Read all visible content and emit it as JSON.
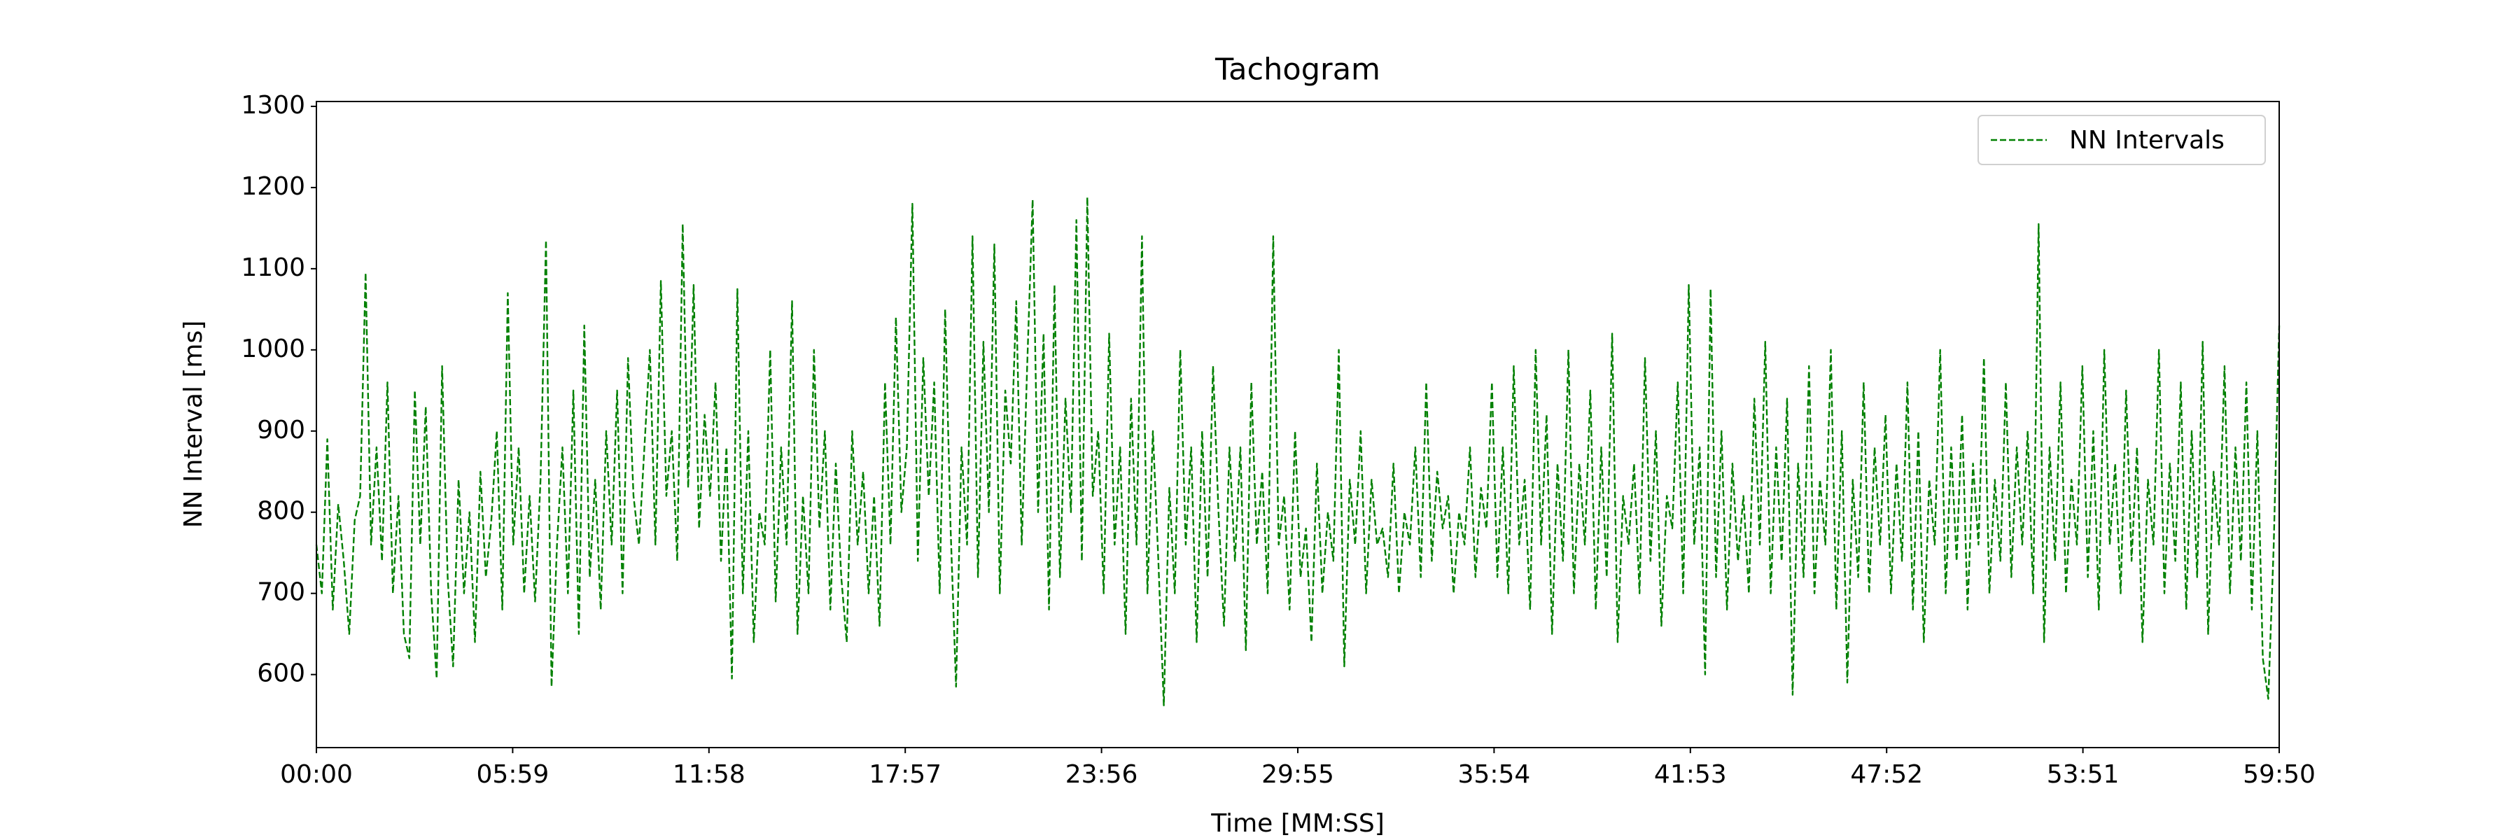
{
  "chart_data": {
    "type": "line",
    "title": "Tachogram",
    "xlabel": "Time [MM:SS]",
    "ylabel": "NN Interval [ms]",
    "x": [
      0,
      10,
      20,
      30,
      40,
      50,
      60,
      70,
      80,
      90,
      100,
      110,
      120,
      130,
      140,
      150,
      160,
      170,
      180,
      190,
      200,
      210,
      220,
      230,
      240,
      250,
      260,
      270,
      280,
      290,
      300,
      310,
      320,
      330,
      340,
      350,
      360,
      370,
      380,
      390,
      400,
      410,
      420,
      430,
      440,
      450,
      460,
      470,
      480,
      490,
      500,
      510,
      520,
      530,
      540,
      550,
      560,
      570,
      580,
      590,
      600,
      610,
      620,
      630,
      640,
      650,
      660,
      670,
      680,
      690,
      700,
      710,
      720,
      730,
      740,
      750,
      760,
      770,
      780,
      790,
      800,
      810,
      820,
      830,
      840,
      850,
      860,
      870,
      880,
      890,
      900,
      910,
      920,
      930,
      940,
      950,
      960,
      970,
      980,
      990,
      1000,
      1010,
      1020,
      1030,
      1040,
      1050,
      1060,
      1070,
      1080,
      1090,
      1100,
      1110,
      1120,
      1130,
      1140,
      1150,
      1160,
      1170,
      1180,
      1190,
      1200,
      1210,
      1220,
      1230,
      1240,
      1250,
      1260,
      1270,
      1280,
      1290,
      1300,
      1310,
      1320,
      1330,
      1340,
      1350,
      1360,
      1370,
      1380,
      1390,
      1400,
      1410,
      1420,
      1430,
      1440,
      1450,
      1460,
      1470,
      1480,
      1490,
      1500,
      1510,
      1520,
      1530,
      1540,
      1550,
      1560,
      1570,
      1580,
      1590,
      1600,
      1610,
      1620,
      1630,
      1640,
      1650,
      1660,
      1670,
      1680,
      1690,
      1700,
      1710,
      1720,
      1730,
      1740,
      1750,
      1760,
      1770,
      1780,
      1790,
      1800,
      1810,
      1820,
      1830,
      1840,
      1850,
      1860,
      1870,
      1880,
      1890,
      1900,
      1910,
      1920,
      1930,
      1940,
      1950,
      1960,
      1970,
      1980,
      1990,
      2000,
      2010,
      2020,
      2030,
      2040,
      2050,
      2060,
      2070,
      2080,
      2090,
      2100,
      2110,
      2120,
      2130,
      2140,
      2150,
      2160,
      2170,
      2180,
      2190,
      2200,
      2210,
      2220,
      2230,
      2240,
      2250,
      2260,
      2270,
      2280,
      2290,
      2300,
      2310,
      2320,
      2330,
      2340,
      2350,
      2360,
      2370,
      2380,
      2390,
      2400,
      2410,
      2420,
      2430,
      2440,
      2450,
      2460,
      2470,
      2480,
      2490,
      2500,
      2510,
      2520,
      2530,
      2540,
      2550,
      2560,
      2570,
      2580,
      2590,
      2600,
      2610,
      2620,
      2630,
      2640,
      2650,
      2660,
      2670,
      2680,
      2690,
      2700,
      2710,
      2720,
      2730,
      2740,
      2750,
      2760,
      2770,
      2780,
      2790,
      2800,
      2810,
      2820,
      2830,
      2840,
      2850,
      2860,
      2870,
      2880,
      2890,
      2900,
      2910,
      2920,
      2930,
      2940,
      2950,
      2960,
      2970,
      2980,
      2990,
      3000,
      3010,
      3020,
      3030,
      3040,
      3050,
      3060,
      3070,
      3080,
      3090,
      3100,
      3110,
      3120,
      3130,
      3140,
      3150,
      3160,
      3170,
      3180,
      3190,
      3200,
      3210,
      3220,
      3230,
      3240,
      3250,
      3260,
      3270,
      3280,
      3290,
      3300,
      3310,
      3320,
      3330,
      3340,
      3350,
      3360,
      3370,
      3380,
      3390,
      3400,
      3410,
      3420,
      3430,
      3440,
      3450,
      3460,
      3470,
      3480,
      3490,
      3500,
      3510,
      3520,
      3530,
      3540,
      3550,
      3560,
      3570,
      3580,
      3590
    ],
    "series": [
      {
        "name": "NN Intervals",
        "color": "#008000",
        "values": [
          760,
          700,
          890,
          680,
          810,
          740,
          650,
          790,
          820,
          1095,
          760,
          880,
          740,
          960,
          700,
          820,
          650,
          620,
          950,
          760,
          930,
          700,
          595,
          980,
          720,
          610,
          840,
          700,
          800,
          640,
          850,
          720,
          790,
          900,
          680,
          1070,
          760,
          880,
          700,
          820,
          690,
          840,
          1135,
          585,
          760,
          880,
          700,
          950,
          650,
          1030,
          720,
          840,
          680,
          900,
          760,
          950,
          700,
          990,
          820,
          760,
          880,
          1000,
          760,
          1085,
          820,
          900,
          740,
          1155,
          830,
          1080,
          780,
          920,
          820,
          960,
          740,
          880,
          595,
          1075,
          700,
          900,
          640,
          800,
          760,
          1000,
          690,
          880,
          760,
          1060,
          650,
          820,
          700,
          1000,
          780,
          900,
          680,
          860,
          720,
          640,
          900,
          760,
          850,
          700,
          820,
          660,
          960,
          760,
          1040,
          800,
          880,
          1180,
          740,
          990,
          820,
          960,
          700,
          1050,
          780,
          585,
          880,
          760,
          1140,
          720,
          1010,
          800,
          1130,
          700,
          950,
          860,
          1060,
          760,
          980,
          1185,
          800,
          1020,
          680,
          1080,
          720,
          940,
          800,
          1160,
          740,
          1188,
          820,
          900,
          700,
          1020,
          760,
          880,
          650,
          940,
          760,
          1140,
          700,
          900,
          740,
          562,
          830,
          700,
          1000,
          760,
          880,
          640,
          900,
          720,
          980,
          800,
          660,
          880,
          740,
          880,
          630,
          960,
          760,
          850,
          700,
          1140,
          760,
          820,
          680,
          900,
          720,
          780,
          640,
          860,
          700,
          800,
          740,
          1000,
          610,
          840,
          760,
          900,
          700,
          840,
          760,
          780,
          720,
          860,
          700,
          800,
          760,
          880,
          720,
          960,
          740,
          850,
          780,
          820,
          700,
          800,
          760,
          880,
          720,
          830,
          780,
          960,
          720,
          880,
          700,
          980,
          760,
          840,
          680,
          1000,
          760,
          920,
          650,
          860,
          740,
          1000,
          700,
          860,
          760,
          950,
          680,
          880,
          720,
          1020,
          640,
          820,
          760,
          860,
          700,
          990,
          740,
          900,
          660,
          820,
          780,
          960,
          700,
          1080,
          760,
          880,
          600,
          1075,
          720,
          900,
          680,
          860,
          740,
          820,
          700,
          940,
          760,
          1010,
          700,
          880,
          740,
          940,
          575,
          860,
          720,
          980,
          700,
          840,
          760,
          1000,
          680,
          900,
          590,
          840,
          720,
          960,
          700,
          880,
          760,
          920,
          700,
          860,
          740,
          960,
          680,
          900,
          640,
          840,
          760,
          1000,
          700,
          880,
          740,
          920,
          680,
          860,
          760,
          990,
          700,
          840,
          740,
          960,
          720,
          880,
          760,
          900,
          700,
          1155,
          640,
          880,
          740,
          960,
          700,
          840,
          760,
          980,
          720,
          900,
          680,
          1000,
          760,
          860,
          700,
          950,
          740,
          880,
          640,
          840,
          760,
          1000,
          700,
          860,
          740,
          960,
          680,
          900,
          720,
          1010,
          650,
          850,
          760,
          980,
          700,
          880,
          740,
          960,
          680,
          900,
          620,
          570,
          760,
          1030
        ]
      }
    ],
    "xlim": [
      0,
      3590
    ],
    "xticks": [
      {
        "value": 0,
        "label": "00:00"
      },
      {
        "value": 359,
        "label": "05:59"
      },
      {
        "value": 718,
        "label": "11:58"
      },
      {
        "value": 1077,
        "label": "17:57"
      },
      {
        "value": 1436,
        "label": "23:56"
      },
      {
        "value": 1795,
        "label": "29:55"
      },
      {
        "value": 2154,
        "label": "35:54"
      },
      {
        "value": 2513,
        "label": "41:53"
      },
      {
        "value": 2872,
        "label": "47:52"
      },
      {
        "value": 3231,
        "label": "53:51"
      },
      {
        "value": 3590,
        "label": "59:50"
      }
    ],
    "ylim": [
      510,
      1306
    ],
    "yticks": [
      600,
      700,
      800,
      900,
      1000,
      1100,
      1200,
      1300
    ],
    "line_style": "dashed",
    "legend": "upper right",
    "grid": false
  }
}
